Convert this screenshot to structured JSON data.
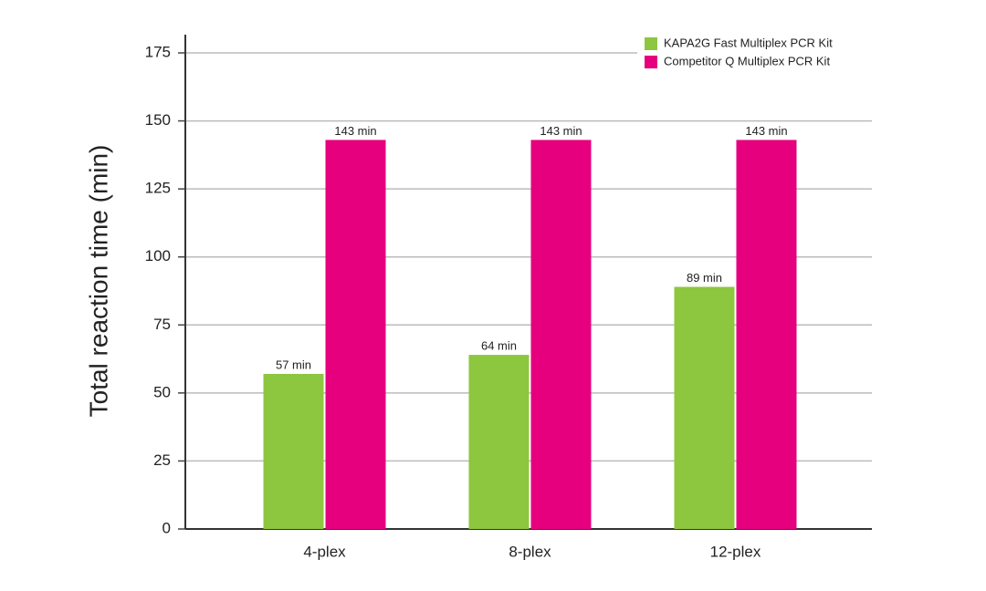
{
  "chart_data": {
    "type": "bar",
    "y_label": "Total reaction time (min)",
    "categories": [
      "4-plex",
      "8-plex",
      "12-plex"
    ],
    "series": [
      {
        "name": "KAPA2G Fast Multiplex PCR Kit",
        "color": "#8dc63f",
        "values": [
          57,
          64,
          89
        ],
        "value_labels": [
          "57 min",
          "64 min",
          "89 min"
        ]
      },
      {
        "name": "Competitor Q Multiplex PCR Kit",
        "color": "#e6007e",
        "values": [
          143,
          143,
          143
        ],
        "value_labels": [
          "143 min",
          "143 min",
          "143 min"
        ]
      }
    ],
    "ylim": [
      0,
      175
    ],
    "yticks": [
      0,
      25,
      50,
      75,
      100,
      125,
      150,
      175
    ],
    "grid": true,
    "legend": "top-right"
  }
}
